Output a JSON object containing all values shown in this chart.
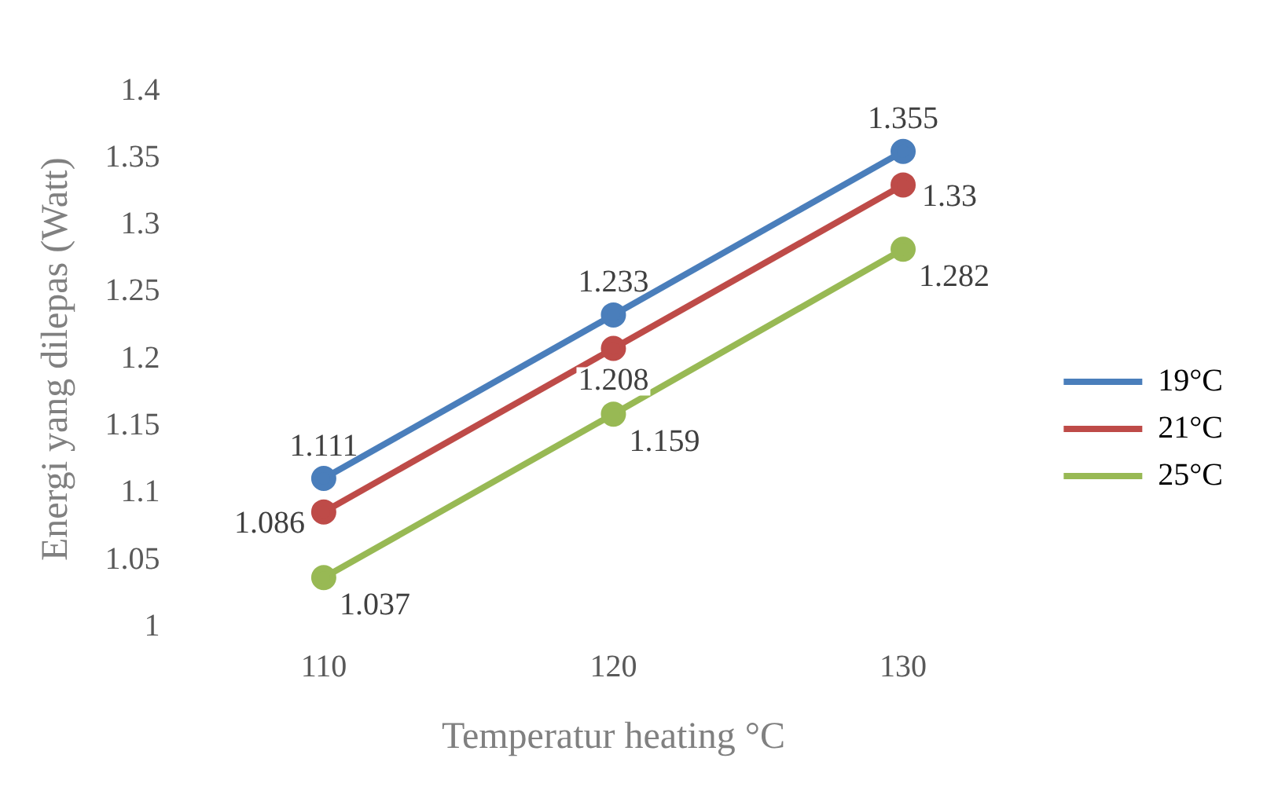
{
  "chart_data": {
    "type": "line",
    "xlabel": "Temperatur heating °C",
    "ylabel": "Energi yang dilepas (Watt)",
    "categories": [
      "110",
      "120",
      "130"
    ],
    "series": [
      {
        "name": "19°C",
        "color": "#4a7ebb",
        "values": [
          1.111,
          1.233,
          1.355
        ]
      },
      {
        "name": "21°C",
        "color": "#be4b48",
        "values": [
          1.086,
          1.208,
          1.33
        ]
      },
      {
        "name": "25°C",
        "color": "#98b954",
        "values": [
          1.037,
          1.159,
          1.282
        ]
      }
    ],
    "ylim": [
      1,
      1.4
    ],
    "yticks": [
      1,
      1.05,
      1.1,
      1.15,
      1.2,
      1.25,
      1.3,
      1.35,
      1.4
    ],
    "grid": false,
    "legend": "right",
    "marker": "circle",
    "line_style": "solid",
    "data_labels": true
  }
}
